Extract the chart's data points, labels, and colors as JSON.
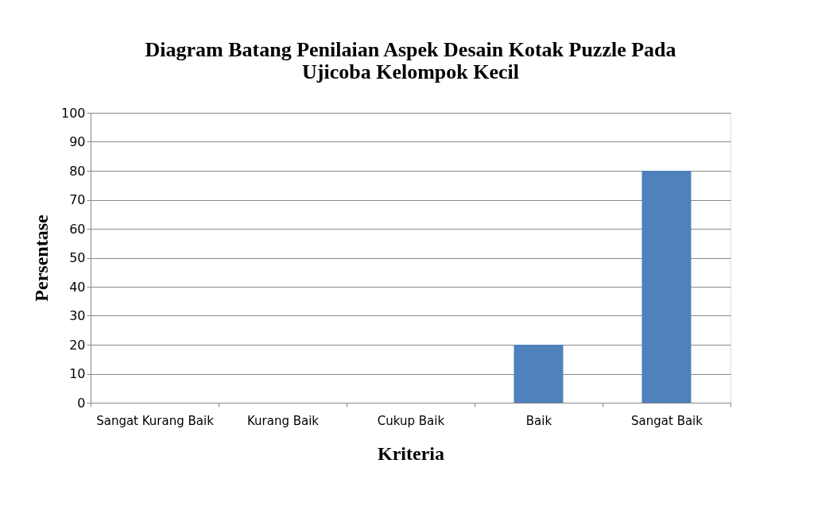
{
  "chart_data": {
    "type": "bar",
    "title": "Diagram Batang Penilaian Aspek Desain Kotak Puzzle Pada Ujicoba Kelompok Kecil",
    "xlabel": "Kriteria",
    "ylabel": "Persentase",
    "categories": [
      "Sangat Kurang Baik",
      "Kurang Baik",
      "Cukup Baik",
      "Baik",
      "Sangat Baik"
    ],
    "values": [
      0,
      0,
      0,
      20,
      80
    ],
    "color": "#4f81bd",
    "ylim": [
      0,
      100
    ],
    "yticks": [
      0,
      10,
      20,
      30,
      40,
      50,
      60,
      70,
      80,
      90,
      100
    ],
    "grid": "y"
  }
}
